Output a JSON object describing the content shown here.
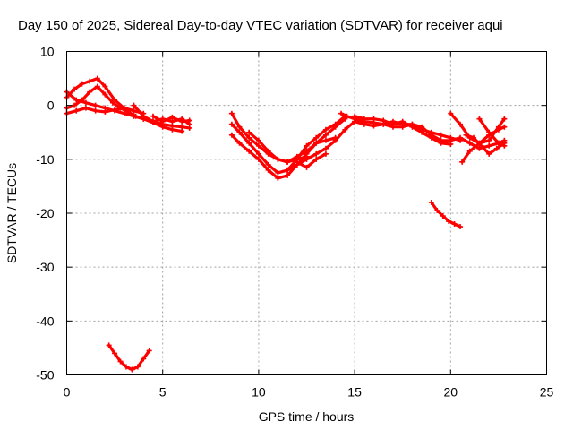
{
  "chart_data": {
    "type": "line",
    "title": "Day 150 of 2025, Sidereal Day-to-day VTEC variation (SDTVAR) for receiver aqui",
    "xlabel": "GPS time / hours",
    "ylabel": "SDTVAR / TECUs",
    "xlim": [
      0,
      25
    ],
    "ylim": [
      -50,
      10
    ],
    "xticks": [
      0,
      5,
      10,
      15,
      20,
      25
    ],
    "yticks": [
      10,
      0,
      -10,
      -20,
      -30,
      -40,
      -50
    ],
    "grid": true,
    "series_color": "#ff0000",
    "series": [
      {
        "name": "track-1",
        "x": [
          0.0,
          0.5,
          1.0,
          1.5,
          2.0,
          2.5,
          3.0,
          3.5,
          4.0,
          4.5,
          5.0,
          5.5,
          6.0,
          6.4
        ],
        "y": [
          2.5,
          1.0,
          0.5,
          0.0,
          -0.5,
          -1.0,
          -1.5,
          -2.0,
          -2.5,
          -3.0,
          -3.5,
          -3.8,
          -4.0,
          -4.2
        ]
      },
      {
        "name": "track-2",
        "x": [
          0.0,
          0.4,
          0.8,
          1.2,
          1.6,
          2.0,
          2.4,
          2.8,
          3.2,
          3.6,
          4.0,
          4.5,
          5.0,
          5.5,
          6.0
        ],
        "y": [
          -0.5,
          0.0,
          1.0,
          2.5,
          3.5,
          2.0,
          0.5,
          -0.5,
          -1.2,
          -2.0,
          -2.5,
          -3.2,
          -4.0,
          -4.5,
          -4.8
        ]
      },
      {
        "name": "track-3",
        "x": [
          0.0,
          0.4,
          0.8,
          1.2,
          1.6,
          2.0,
          2.5,
          3.0,
          3.5
        ],
        "y": [
          1.5,
          3.0,
          4.0,
          4.5,
          5.0,
          3.5,
          1.0,
          -0.5,
          -1.0
        ]
      },
      {
        "name": "track-4",
        "x": [
          0.0,
          0.5,
          1.0,
          1.5,
          2.0,
          2.5,
          3.0,
          3.5,
          4.0
        ],
        "y": [
          -1.5,
          -1.0,
          -0.5,
          -1.0,
          -1.2,
          -0.8,
          -0.5,
          -1.0,
          -1.5
        ]
      },
      {
        "name": "track-5",
        "x": [
          3.5,
          4.0,
          4.5,
          5.0,
          5.5,
          6.0,
          6.4
        ],
        "y": [
          0.0,
          -2.0,
          -3.0,
          -2.5,
          -3.0,
          -2.5,
          -3.5
        ]
      },
      {
        "name": "track-6",
        "x": [
          4.5,
          5.0,
          5.5,
          6.0,
          6.4
        ],
        "y": [
          -2.0,
          -3.0,
          -2.2,
          -3.0,
          -2.8
        ]
      },
      {
        "name": "track-7",
        "x": [
          2.2,
          2.5,
          2.8,
          3.1,
          3.4,
          3.7,
          4.0,
          4.3
        ],
        "y": [
          -44.5,
          -46.0,
          -47.5,
          -48.5,
          -49.0,
          -48.5,
          -47.0,
          -45.5
        ]
      },
      {
        "name": "track-8",
        "x": [
          8.6,
          9.0,
          9.5,
          10.0,
          10.5,
          11.0,
          11.5,
          12.0,
          12.5,
          13.0,
          13.5,
          14.0,
          14.5
        ],
        "y": [
          -3.5,
          -5.0,
          -7.0,
          -9.0,
          -11.0,
          -12.5,
          -12.0,
          -10.0,
          -7.5,
          -6.0,
          -4.5,
          -3.5,
          -2.0
        ]
      },
      {
        "name": "track-9",
        "x": [
          8.6,
          9.0,
          9.5,
          10.0,
          10.5,
          11.0,
          11.5,
          12.0,
          12.5,
          13.0,
          13.5,
          14.0,
          14.5
        ],
        "y": [
          -5.5,
          -7.0,
          -8.5,
          -10.0,
          -12.0,
          -13.5,
          -13.0,
          -11.0,
          -9.0,
          -7.0,
          -5.5,
          -4.0,
          -2.5
        ]
      },
      {
        "name": "track-10",
        "x": [
          8.6,
          9.0,
          9.5,
          10.0,
          10.5,
          11.0,
          11.5,
          12.0,
          12.5
        ],
        "y": [
          -1.5,
          -4.0,
          -6.0,
          -7.5,
          -9.0,
          -10.0,
          -10.5,
          -10.0,
          -9.5
        ]
      },
      {
        "name": "track-11",
        "x": [
          9.5,
          10.0,
          10.5,
          11.0,
          11.5,
          12.0,
          12.5,
          13.0,
          13.5,
          14.0
        ],
        "y": [
          -5.0,
          -6.5,
          -8.5,
          -10.0,
          -10.5,
          -9.5,
          -8.5,
          -7.0,
          -6.5,
          -6.0
        ]
      },
      {
        "name": "track-12",
        "x": [
          11.5,
          12.0,
          12.5,
          13.0,
          13.5,
          14.0,
          14.5,
          15.0
        ],
        "y": [
          -12.0,
          -11.0,
          -10.0,
          -9.0,
          -8.0,
          -6.5,
          -4.5,
          -3.0
        ]
      },
      {
        "name": "track-13",
        "x": [
          12.0,
          12.5,
          13.0,
          13.5
        ],
        "y": [
          -10.5,
          -11.5,
          -10.0,
          -9.0
        ]
      },
      {
        "name": "track-14",
        "x": [
          14.3,
          14.6,
          15.0,
          15.5,
          16.0,
          16.5,
          17.0,
          17.5,
          18.0,
          18.5,
          19.0,
          19.5,
          20.0,
          20.5,
          21.0,
          21.5,
          22.0,
          22.5,
          22.8
        ],
        "y": [
          -1.5,
          -2.0,
          -2.5,
          -3.0,
          -3.2,
          -3.5,
          -3.0,
          -3.5,
          -3.5,
          -4.0,
          -5.5,
          -6.5,
          -6.5,
          -6.0,
          -7.0,
          -8.0,
          -7.5,
          -7.0,
          -6.5
        ]
      },
      {
        "name": "track-15",
        "x": [
          15.0,
          15.5,
          16.0,
          16.5,
          17.0,
          17.5,
          18.0,
          18.5,
          19.0,
          19.5,
          20.0
        ],
        "y": [
          -2.0,
          -2.5,
          -2.5,
          -2.8,
          -3.5,
          -3.0,
          -4.0,
          -5.0,
          -6.0,
          -7.0,
          -7.2
        ]
      },
      {
        "name": "track-16",
        "x": [
          15.0,
          15.5,
          16.0,
          16.5,
          17.0,
          17.5,
          18.0,
          18.5,
          19.0,
          19.5,
          20.0,
          20.5
        ],
        "y": [
          -3.0,
          -3.5,
          -3.8,
          -3.5,
          -4.0,
          -4.0,
          -3.5,
          -4.5,
          -5.0,
          -5.5,
          -6.0,
          -6.5
        ]
      },
      {
        "name": "track-17",
        "x": [
          20.0,
          20.5,
          21.0,
          21.5,
          22.0,
          22.5,
          22.8
        ],
        "y": [
          -1.5,
          -3.5,
          -6.0,
          -7.0,
          -6.5,
          -4.0,
          -2.5
        ]
      },
      {
        "name": "track-18",
        "x": [
          20.6,
          21.0,
          21.5,
          22.0,
          22.5,
          22.8
        ],
        "y": [
          -10.5,
          -8.5,
          -7.0,
          -5.5,
          -4.5,
          -4.0
        ]
      },
      {
        "name": "track-19",
        "x": [
          20.8,
          21.2,
          21.6,
          22.0,
          22.4,
          22.8
        ],
        "y": [
          -5.5,
          -6.0,
          -7.5,
          -9.0,
          -8.0,
          -7.0
        ]
      },
      {
        "name": "track-20",
        "x": [
          21.5,
          22.0,
          22.5,
          22.8
        ],
        "y": [
          -2.5,
          -5.0,
          -7.0,
          -7.5
        ]
      },
      {
        "name": "track-21",
        "x": [
          19.0,
          19.3,
          19.6,
          19.9,
          20.2,
          20.5
        ],
        "y": [
          -18.0,
          -19.5,
          -20.5,
          -21.5,
          -22.0,
          -22.5
        ]
      }
    ]
  }
}
